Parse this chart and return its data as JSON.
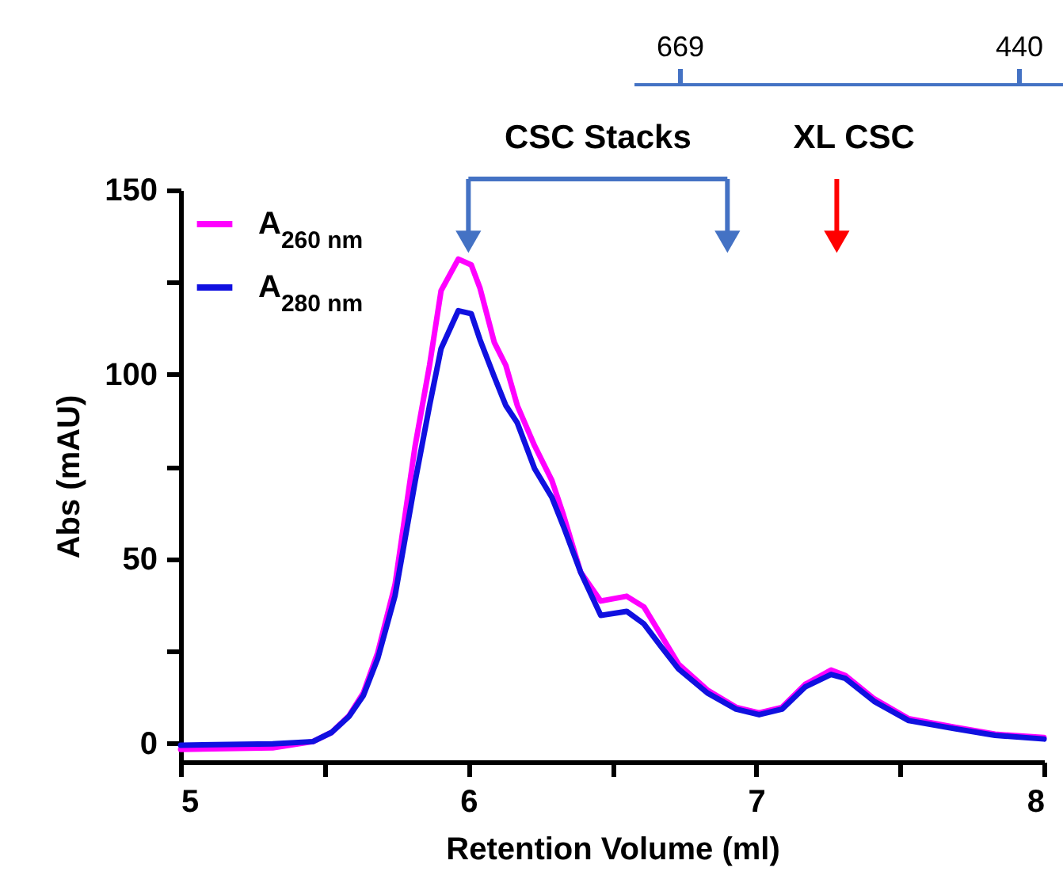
{
  "chart_data": {
    "type": "line",
    "xlabel": "Retention Volume (ml)",
    "ylabel": "Abs (mAU)",
    "x": [
      5.0,
      5.32,
      5.46,
      5.525,
      5.585,
      5.635,
      5.685,
      5.745,
      5.815,
      5.865,
      5.905,
      5.965,
      6.01,
      6.04,
      6.09,
      6.13,
      6.17,
      6.23,
      6.29,
      6.33,
      6.39,
      6.46,
      6.55,
      6.61,
      6.67,
      6.73,
      6.83,
      6.93,
      7.01,
      7.09,
      7.17,
      7.26,
      7.31,
      7.41,
      7.53,
      7.69,
      7.83,
      8.0
    ],
    "series": [
      {
        "name": "A$_{260 nm}$",
        "color": "#ff00ff",
        "values": [
          -1.6,
          -1.2,
          0.5,
          3,
          7.5,
          13.7,
          24.6,
          43,
          80.7,
          102.5,
          122.7,
          131.3,
          129.7,
          123.5,
          108.7,
          102.5,
          91.6,
          80.7,
          71.3,
          62,
          46.4,
          38.6,
          39.9,
          37,
          29.3,
          21.5,
          14.5,
          9.8,
          8.3,
          9.8,
          16,
          19.9,
          18.4,
          12.1,
          6.7,
          4.4,
          2.5,
          1.6
        ]
      },
      {
        "name": "A$_{280 nm}$",
        "color": "#1010e0",
        "values": [
          -0.5,
          -0.1,
          0.5,
          3,
          7.3,
          13,
          23,
          40,
          71,
          91.6,
          107,
          117.3,
          116.5,
          109.5,
          99.4,
          91.6,
          86.9,
          74.5,
          66.7,
          58.9,
          46.4,
          34.7,
          35.8,
          32.4,
          26.2,
          20.2,
          13.7,
          9.3,
          7.8,
          9.3,
          15.3,
          18.7,
          17.6,
          11.4,
          6.2,
          4,
          2.2,
          1.2
        ]
      }
    ],
    "xlim": [
      5,
      8
    ],
    "xticks": [
      5,
      {
        "value": 5.5,
        "label": null
      },
      6,
      {
        "value": 6.5,
        "label": null
      },
      7,
      {
        "value": 7.5,
        "label": null
      },
      8
    ],
    "ylim": [
      -5,
      150
    ],
    "yticks": [
      0,
      {
        "value": 25,
        "label": null
      },
      50,
      {
        "value": 75,
        "label": null
      },
      100,
      {
        "value": 125,
        "label": null
      },
      150
    ],
    "x2lim": [
      700,
      410
    ],
    "x2ticks": [
      669,
      440
    ],
    "annotations": [
      "CSC Stacks",
      "XL CSC"
    ],
    "legend": "top left",
    "marker": "none",
    "grid": false
  }
}
